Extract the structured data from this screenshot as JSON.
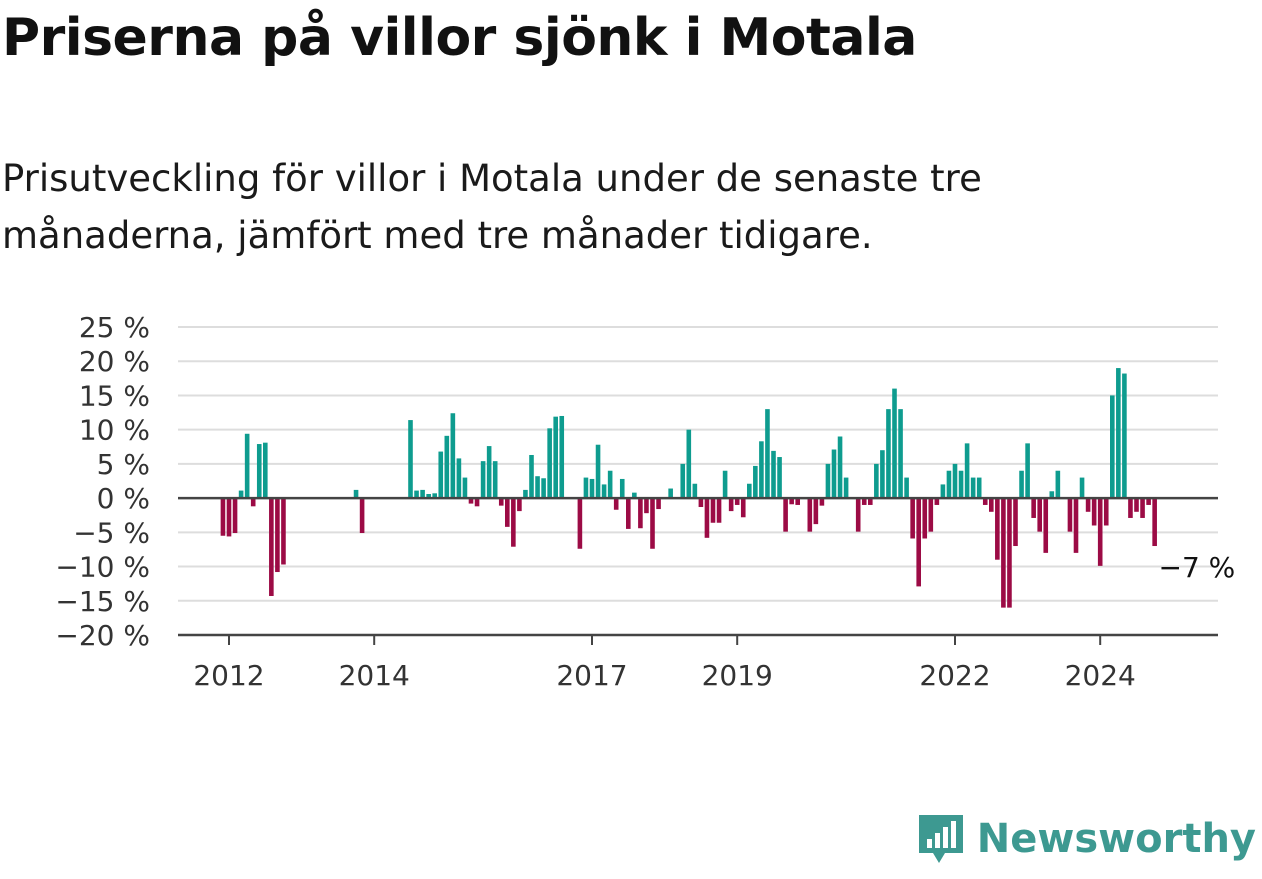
{
  "title": "Priserna på villor sjönk i Motala",
  "subtitle": "Prisutveckling för villor i Motala under de senaste tre månaderna, jämfört med tre månader tidigare.",
  "brand": "Newsworthy",
  "colors": {
    "positive": "#0e9c8f",
    "negative": "#9c0b45",
    "grid": "#dddddd",
    "axis": "#444444",
    "brand": "#3d9991"
  },
  "chart_data": {
    "type": "bar",
    "x_unit": "month",
    "y_unit": "%",
    "ylim": [
      -20,
      25
    ],
    "yticks": [
      25,
      20,
      15,
      10,
      5,
      0,
      -5,
      -10,
      -15,
      -20
    ],
    "ytick_labels": [
      "25 %",
      "20 %",
      "15 %",
      "10 %",
      "5 %",
      "0 %",
      "−5 %",
      "−10 %",
      "−15 %",
      "−20 %"
    ],
    "xticks": [
      "2012",
      "2014",
      "2017",
      "2019",
      "2022",
      "2024"
    ],
    "grid": true,
    "annotation": {
      "text": "−7 %",
      "month": "2025-03"
    },
    "series": [
      {
        "values": [
          [
            "2011-12",
            -5.5
          ],
          [
            "2012-01",
            -5.6
          ],
          [
            "2012-02",
            -5.1
          ],
          [
            "2012-03",
            1.1
          ],
          [
            "2012-04",
            9.4
          ],
          [
            "2012-05",
            -1.2
          ],
          [
            "2012-06",
            7.9
          ],
          [
            "2012-07",
            8.1
          ],
          [
            "2012-08",
            -14.3
          ],
          [
            "2012-09",
            -10.8
          ],
          [
            "2012-10",
            -9.7
          ],
          [
            "2013-10",
            1.2
          ],
          [
            "2013-11",
            -5.1
          ],
          [
            "2014-07",
            11.4
          ],
          [
            "2014-08",
            1.1
          ],
          [
            "2014-09",
            1.2
          ],
          [
            "2014-10",
            0.6
          ],
          [
            "2014-11",
            0.7
          ],
          [
            "2014-12",
            6.8
          ],
          [
            "2015-01",
            9.1
          ],
          [
            "2015-02",
            12.4
          ],
          [
            "2015-03",
            5.8
          ],
          [
            "2015-04",
            3.0
          ],
          [
            "2015-05",
            -0.8
          ],
          [
            "2015-06",
            -1.2
          ],
          [
            "2015-07",
            5.4
          ],
          [
            "2015-08",
            7.6
          ],
          [
            "2015-09",
            5.4
          ],
          [
            "2015-10",
            -1.1
          ],
          [
            "2015-11",
            -4.2
          ],
          [
            "2015-12",
            -7.1
          ],
          [
            "2016-01",
            -1.9
          ],
          [
            "2016-02",
            1.2
          ],
          [
            "2016-03",
            6.3
          ],
          [
            "2016-04",
            3.2
          ],
          [
            "2016-05",
            2.9
          ],
          [
            "2016-06",
            10.2
          ],
          [
            "2016-07",
            11.9
          ],
          [
            "2016-08",
            12.0
          ],
          [
            "2016-11",
            -7.4
          ],
          [
            "2016-12",
            3.0
          ],
          [
            "2017-01",
            2.8
          ],
          [
            "2017-02",
            7.8
          ],
          [
            "2017-03",
            2.0
          ],
          [
            "2017-04",
            4.0
          ],
          [
            "2017-05",
            -1.7
          ],
          [
            "2017-06",
            2.8
          ],
          [
            "2017-07",
            -4.5
          ],
          [
            "2017-08",
            0.8
          ],
          [
            "2017-09",
            -4.4
          ],
          [
            "2017-10",
            -2.2
          ],
          [
            "2017-11",
            -7.4
          ],
          [
            "2017-12",
            -1.6
          ],
          [
            "2018-02",
            1.4
          ],
          [
            "2018-04",
            5.0
          ],
          [
            "2018-05",
            10.0
          ],
          [
            "2018-06",
            2.1
          ],
          [
            "2018-07",
            -1.3
          ],
          [
            "2018-08",
            -5.8
          ],
          [
            "2018-09",
            -3.6
          ],
          [
            "2018-10",
            -3.6
          ],
          [
            "2018-11",
            4.0
          ],
          [
            "2018-12",
            -1.9
          ],
          [
            "2019-01",
            -1.0
          ],
          [
            "2019-02",
            -2.8
          ],
          [
            "2019-03",
            2.1
          ],
          [
            "2019-04",
            4.7
          ],
          [
            "2019-05",
            8.3
          ],
          [
            "2019-06",
            13.0
          ],
          [
            "2019-07",
            6.9
          ],
          [
            "2019-08",
            6.0
          ],
          [
            "2019-09",
            -4.9
          ],
          [
            "2019-10",
            -0.9
          ],
          [
            "2019-11",
            -1.0
          ],
          [
            "2020-01",
            -4.9
          ],
          [
            "2020-02",
            -3.8
          ],
          [
            "2020-03",
            -1.1
          ],
          [
            "2020-04",
            5.0
          ],
          [
            "2020-05",
            7.1
          ],
          [
            "2020-06",
            9.0
          ],
          [
            "2020-07",
            3.0
          ],
          [
            "2020-09",
            -4.9
          ],
          [
            "2020-10",
            -1.0
          ],
          [
            "2020-11",
            -1.0
          ],
          [
            "2020-12",
            5.0
          ],
          [
            "2021-01",
            7.0
          ],
          [
            "2021-02",
            13.0
          ],
          [
            "2021-03",
            16.0
          ],
          [
            "2021-04",
            13.0
          ],
          [
            "2021-05",
            3.0
          ],
          [
            "2021-06",
            -5.9
          ],
          [
            "2021-07",
            -12.9
          ],
          [
            "2021-08",
            -5.9
          ],
          [
            "2021-09",
            -4.9
          ],
          [
            "2021-10",
            -1.0
          ],
          [
            "2021-11",
            2.0
          ],
          [
            "2021-12",
            4.0
          ],
          [
            "2022-01",
            5.0
          ],
          [
            "2022-02",
            4.0
          ],
          [
            "2022-03",
            8.0
          ],
          [
            "2022-04",
            3.0
          ],
          [
            "2022-05",
            3.0
          ],
          [
            "2022-06",
            -1.0
          ],
          [
            "2022-07",
            -2.0
          ],
          [
            "2022-08",
            -9.0
          ],
          [
            "2022-09",
            -16.0
          ],
          [
            "2022-10",
            -16.0
          ],
          [
            "2022-11",
            -7.0
          ],
          [
            "2022-12",
            4.0
          ],
          [
            "2023-01",
            8.0
          ],
          [
            "2023-02",
            -2.9
          ],
          [
            "2023-03",
            -4.9
          ],
          [
            "2023-04",
            -8.0
          ],
          [
            "2023-05",
            1.0
          ],
          [
            "2023-06",
            4.0
          ],
          [
            "2023-08",
            -4.9
          ],
          [
            "2023-09",
            -8.0
          ],
          [
            "2023-10",
            3.0
          ],
          [
            "2023-11",
            -2.0
          ],
          [
            "2023-12",
            -4.0
          ],
          [
            "2024-01",
            -9.9
          ],
          [
            "2024-02",
            -4.0
          ],
          [
            "2024-03",
            15.0
          ],
          [
            "2024-04",
            19.0
          ],
          [
            "2024-05",
            18.2
          ],
          [
            "2024-06",
            -2.9
          ],
          [
            "2024-07",
            -2.0
          ],
          [
            "2024-08",
            -2.9
          ],
          [
            "2024-09",
            -1.0
          ],
          [
            "2024-10",
            -7.0
          ]
        ]
      }
    ]
  }
}
